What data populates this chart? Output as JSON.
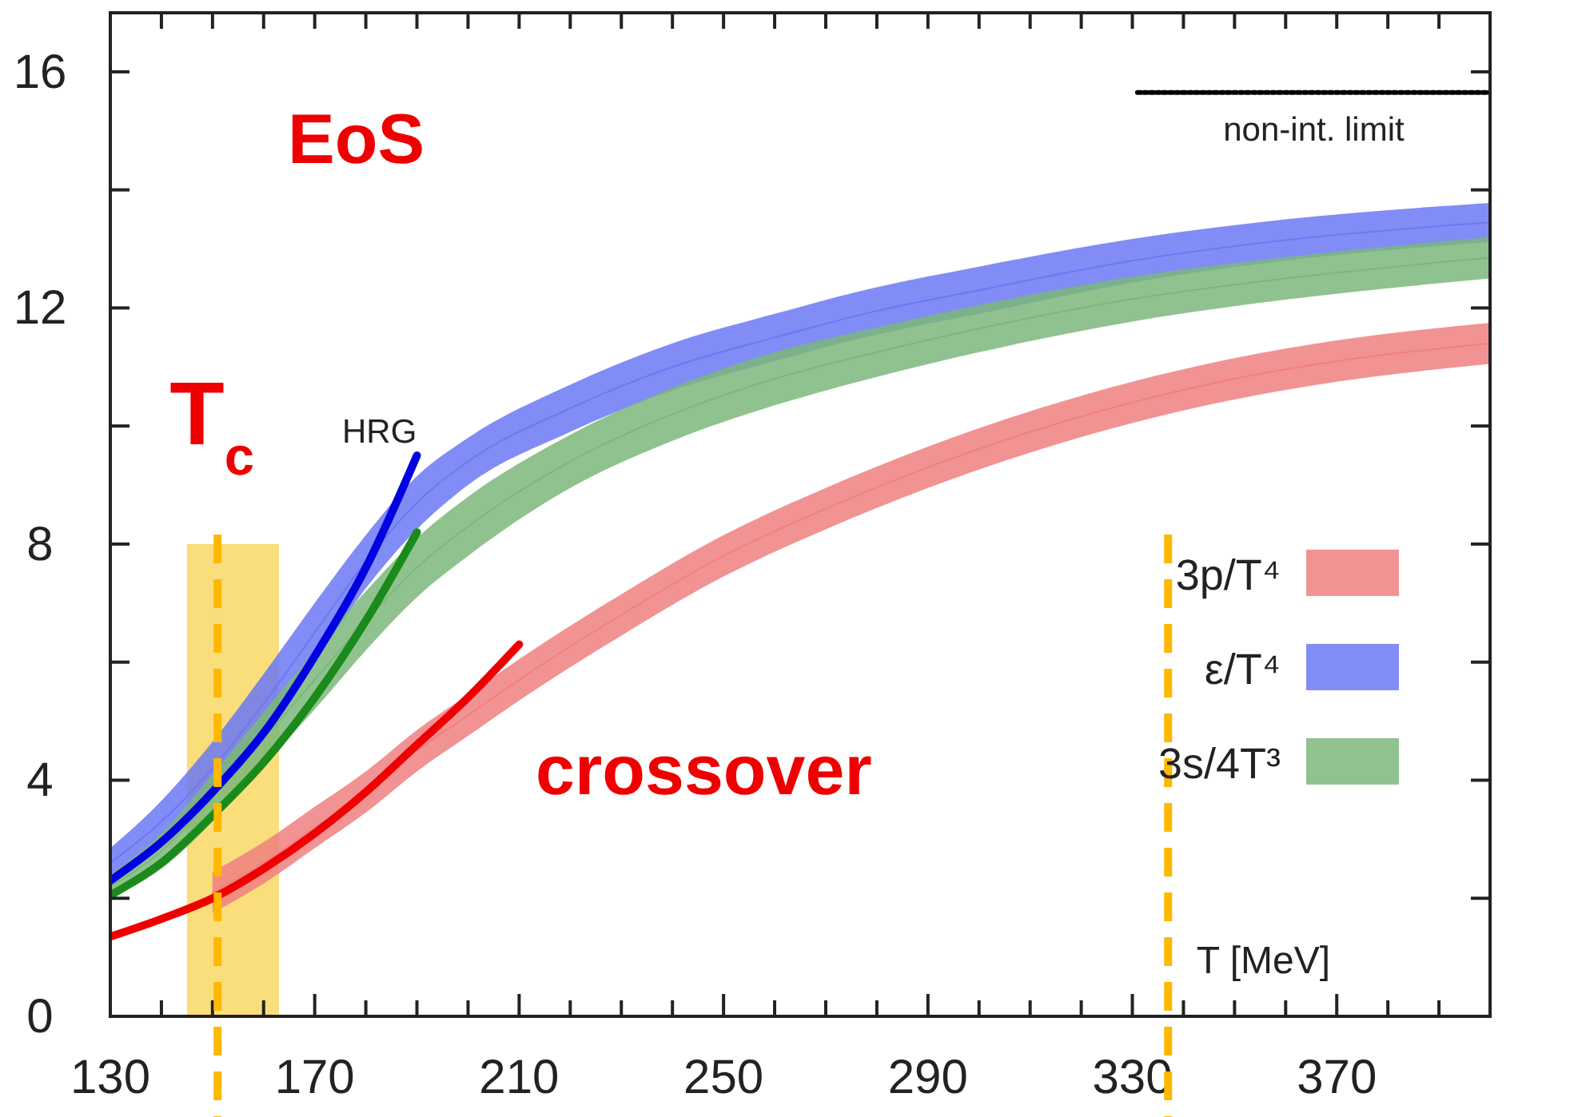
{
  "chart_data": {
    "type": "line",
    "xlabel": "T [MeV]",
    "xlim": [
      130,
      400
    ],
    "ylim": [
      0,
      17
    ],
    "xticks": [
      130,
      {
        "value": 140,
        "label": null
      },
      {
        "value": 150,
        "label": null
      },
      {
        "value": 160,
        "label": null
      },
      170,
      {
        "value": 180,
        "label": null
      },
      {
        "value": 190,
        "label": null
      },
      {
        "value": 200,
        "label": null
      },
      210,
      {
        "value": 220,
        "label": null
      },
      {
        "value": 230,
        "label": null
      },
      {
        "value": 240,
        "label": null
      },
      250,
      {
        "value": 260,
        "label": null
      },
      {
        "value": 270,
        "label": null
      },
      {
        "value": 280,
        "label": null
      },
      290,
      {
        "value": 300,
        "label": null
      },
      {
        "value": 310,
        "label": null
      },
      {
        "value": 320,
        "label": null
      },
      330,
      {
        "value": 340,
        "label": null
      },
      {
        "value": 350,
        "label": null
      },
      {
        "value": 360,
        "label": null
      },
      370,
      {
        "value": 380,
        "label": null
      },
      {
        "value": 390,
        "label": null
      }
    ],
    "yticks": [
      0,
      {
        "value": 2,
        "label": null
      },
      4,
      {
        "value": 6,
        "label": null
      },
      8,
      {
        "value": 10,
        "label": null
      },
      12,
      {
        "value": 14,
        "label": null
      },
      16
    ],
    "grid": false,
    "legend": "right",
    "series": [
      {
        "type": "area",
        "color": "#f7d65a",
        "x": [
          145,
          163
        ],
        "values": [
          8,
          8
        ]
      },
      {
        "type": "line",
        "name": "3p/T⁴",
        "color": "#f08080",
        "x": [
          150,
          160,
          170,
          180,
          190,
          200,
          210,
          230,
          250,
          270,
          290,
          310,
          330,
          350,
          370,
          400
        ],
        "values": [
          2.1,
          2.6,
          3.2,
          3.8,
          4.5,
          5.1,
          5.7,
          6.8,
          7.8,
          8.6,
          9.3,
          9.9,
          10.4,
          10.8,
          11.1,
          11.4
        ],
        "lower": [
          1.75,
          2.25,
          2.85,
          3.45,
          4.15,
          4.75,
          5.35,
          6.45,
          7.45,
          8.25,
          8.95,
          9.55,
          10.05,
          10.45,
          10.75,
          11.05
        ],
        "upper": [
          2.45,
          2.95,
          3.55,
          4.15,
          4.85,
          5.45,
          6.05,
          7.15,
          8.15,
          8.95,
          9.65,
          10.25,
          10.75,
          11.15,
          11.45,
          11.75
        ]
      },
      {
        "type": "line",
        "name": "ε/T⁴",
        "color": "#6b78f5",
        "x": [
          130,
          140,
          150,
          160,
          170,
          180,
          190,
          200,
          220,
          240,
          260,
          280,
          300,
          330,
          360,
          400
        ],
        "values": [
          2.6,
          3.3,
          4.2,
          5.3,
          6.5,
          7.7,
          8.7,
          9.4,
          10.3,
          11.0,
          11.5,
          11.95,
          12.3,
          12.8,
          13.15,
          13.45
        ],
        "lower": [
          2.35,
          2.95,
          3.75,
          4.8,
          6.0,
          7.25,
          8.25,
          9.0,
          9.9,
          10.6,
          11.1,
          11.55,
          11.9,
          12.43,
          12.8,
          13.12
        ],
        "upper": [
          2.85,
          3.65,
          4.65,
          5.8,
          7.0,
          8.15,
          9.15,
          9.8,
          10.7,
          11.4,
          11.9,
          12.35,
          12.7,
          13.17,
          13.5,
          13.78
        ]
      },
      {
        "type": "line",
        "name": "3s/4T³",
        "color": "#7bb77b",
        "x": [
          130,
          140,
          150,
          160,
          170,
          180,
          190,
          200,
          220,
          240,
          260,
          280,
          300,
          330,
          360,
          400
        ],
        "values": [
          2.2,
          2.8,
          3.7,
          4.7,
          5.7,
          6.7,
          7.6,
          8.3,
          9.4,
          10.2,
          10.8,
          11.25,
          11.65,
          12.15,
          12.5,
          12.85
        ],
        "lower": [
          2.0,
          2.5,
          3.3,
          4.25,
          5.2,
          6.2,
          7.1,
          7.8,
          8.95,
          9.75,
          10.35,
          10.83,
          11.25,
          11.77,
          12.14,
          12.5
        ],
        "upper": [
          2.4,
          3.1,
          4.1,
          5.15,
          6.2,
          7.2,
          8.1,
          8.8,
          9.85,
          10.65,
          11.25,
          11.67,
          12.05,
          12.53,
          12.86,
          13.2
        ]
      },
      {
        "color": "#0000e0",
        "x": [
          130,
          140,
          150,
          160,
          170,
          180,
          190
        ],
        "values": [
          2.3,
          2.95,
          3.8,
          4.8,
          6.1,
          7.6,
          9.5
        ]
      },
      {
        "color": "#1a8a1a",
        "x": [
          130,
          140,
          150,
          160,
          170,
          180,
          190
        ],
        "values": [
          2.05,
          2.6,
          3.4,
          4.3,
          5.4,
          6.7,
          8.2
        ]
      },
      {
        "color": "#ee0000",
        "x": [
          130,
          140,
          150,
          160,
          170,
          180,
          190,
          200,
          210
        ],
        "values": [
          1.35,
          1.65,
          2.0,
          2.5,
          3.1,
          3.8,
          4.6,
          5.4,
          6.3
        ]
      },
      {
        "type": "line",
        "name": "non-int. limit",
        "color": "#000000",
        "line_style": "dotted",
        "x": [
          331,
          400
        ],
        "values": [
          15.65,
          15.65
        ]
      }
    ],
    "ref_lines": [
      {
        "axis": "x",
        "value": 151,
        "label": "T$_{c}$",
        "color": "#ffb800",
        "line_style": "dashed"
      },
      {
        "axis": "x",
        "value": 337,
        "color": "#ffb800",
        "line_style": "dashed"
      }
    ],
    "annotations": [
      "EoS",
      "crossover",
      "HRG"
    ]
  }
}
